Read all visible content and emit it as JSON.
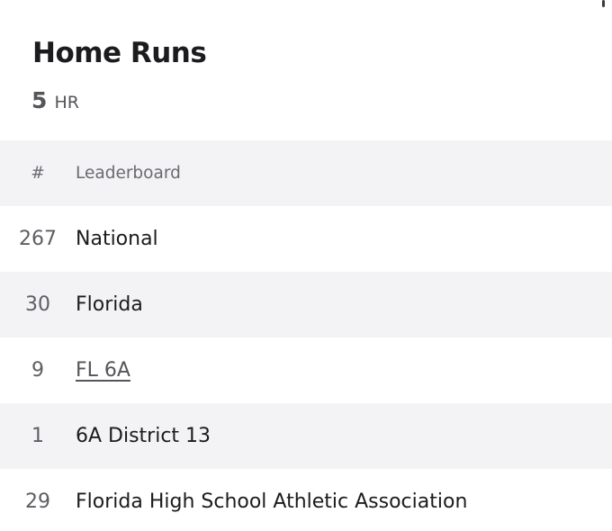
{
  "header": {
    "title": "Home Runs",
    "stat_value": "5",
    "stat_unit": "HR"
  },
  "table": {
    "columns": {
      "rank": "#",
      "name": "Leaderboard"
    },
    "rows": [
      {
        "rank": "267",
        "name": "National",
        "link": false
      },
      {
        "rank": "30",
        "name": "Florida",
        "link": false
      },
      {
        "rank": "9",
        "name": "FL 6A",
        "link": true
      },
      {
        "rank": "1",
        "name": "6A District 13",
        "link": false
      },
      {
        "rank": "29",
        "name": "Florida High School Athletic Association",
        "link": false
      }
    ]
  }
}
